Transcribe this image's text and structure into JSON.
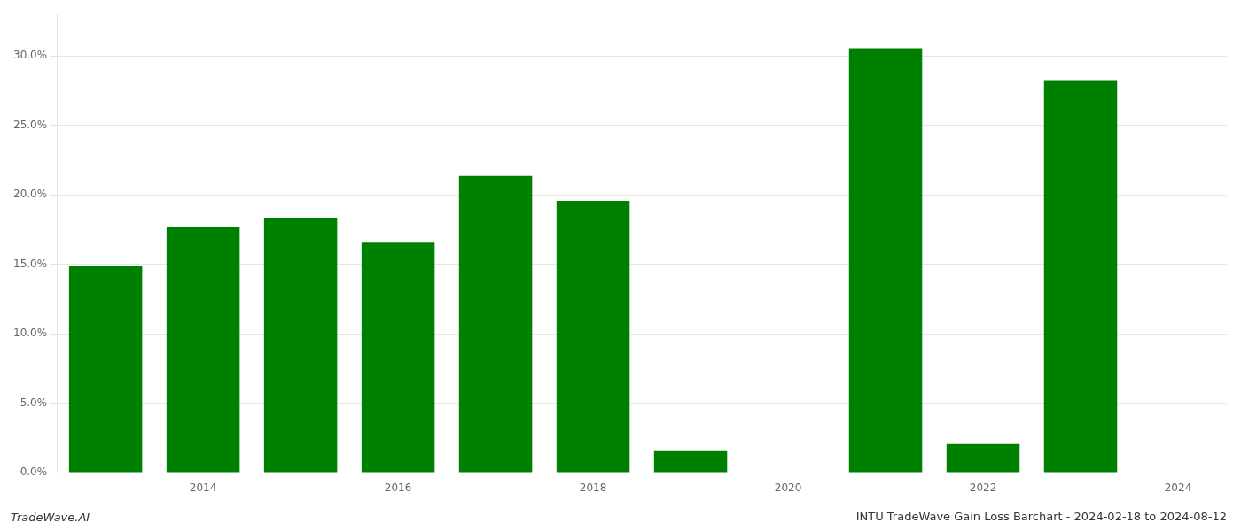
{
  "chart_data": {
    "type": "bar",
    "title": "INTU TradeWave Gain Loss Barchart - 2024-02-18 to 2024-08-12",
    "annotations": [
      "TradeWave.AI"
    ],
    "categories": [
      null,
      "2014",
      null,
      "2016",
      null,
      "2018",
      null,
      "2020",
      null,
      "2022",
      null,
      "2024"
    ],
    "values": [
      0.1488,
      0.1765,
      0.1835,
      0.1655,
      0.2135,
      0.1955,
      0.0155,
      0.0,
      0.3055,
      0.0205,
      0.2825,
      0.0
    ],
    "color": "#008000",
    "ylim": [
      0,
      0.33
    ],
    "yticks": [
      {
        "value": 0.0,
        "label": "0.0%"
      },
      {
        "value": 0.05,
        "label": "5.0%"
      },
      {
        "value": 0.1,
        "label": "10.0%"
      },
      {
        "value": 0.15,
        "label": "15.0%"
      },
      {
        "value": 0.2,
        "label": "20.0%"
      },
      {
        "value": 0.25,
        "label": "25.0%"
      },
      {
        "value": 0.3,
        "label": "30.0%"
      }
    ],
    "grid": true
  }
}
